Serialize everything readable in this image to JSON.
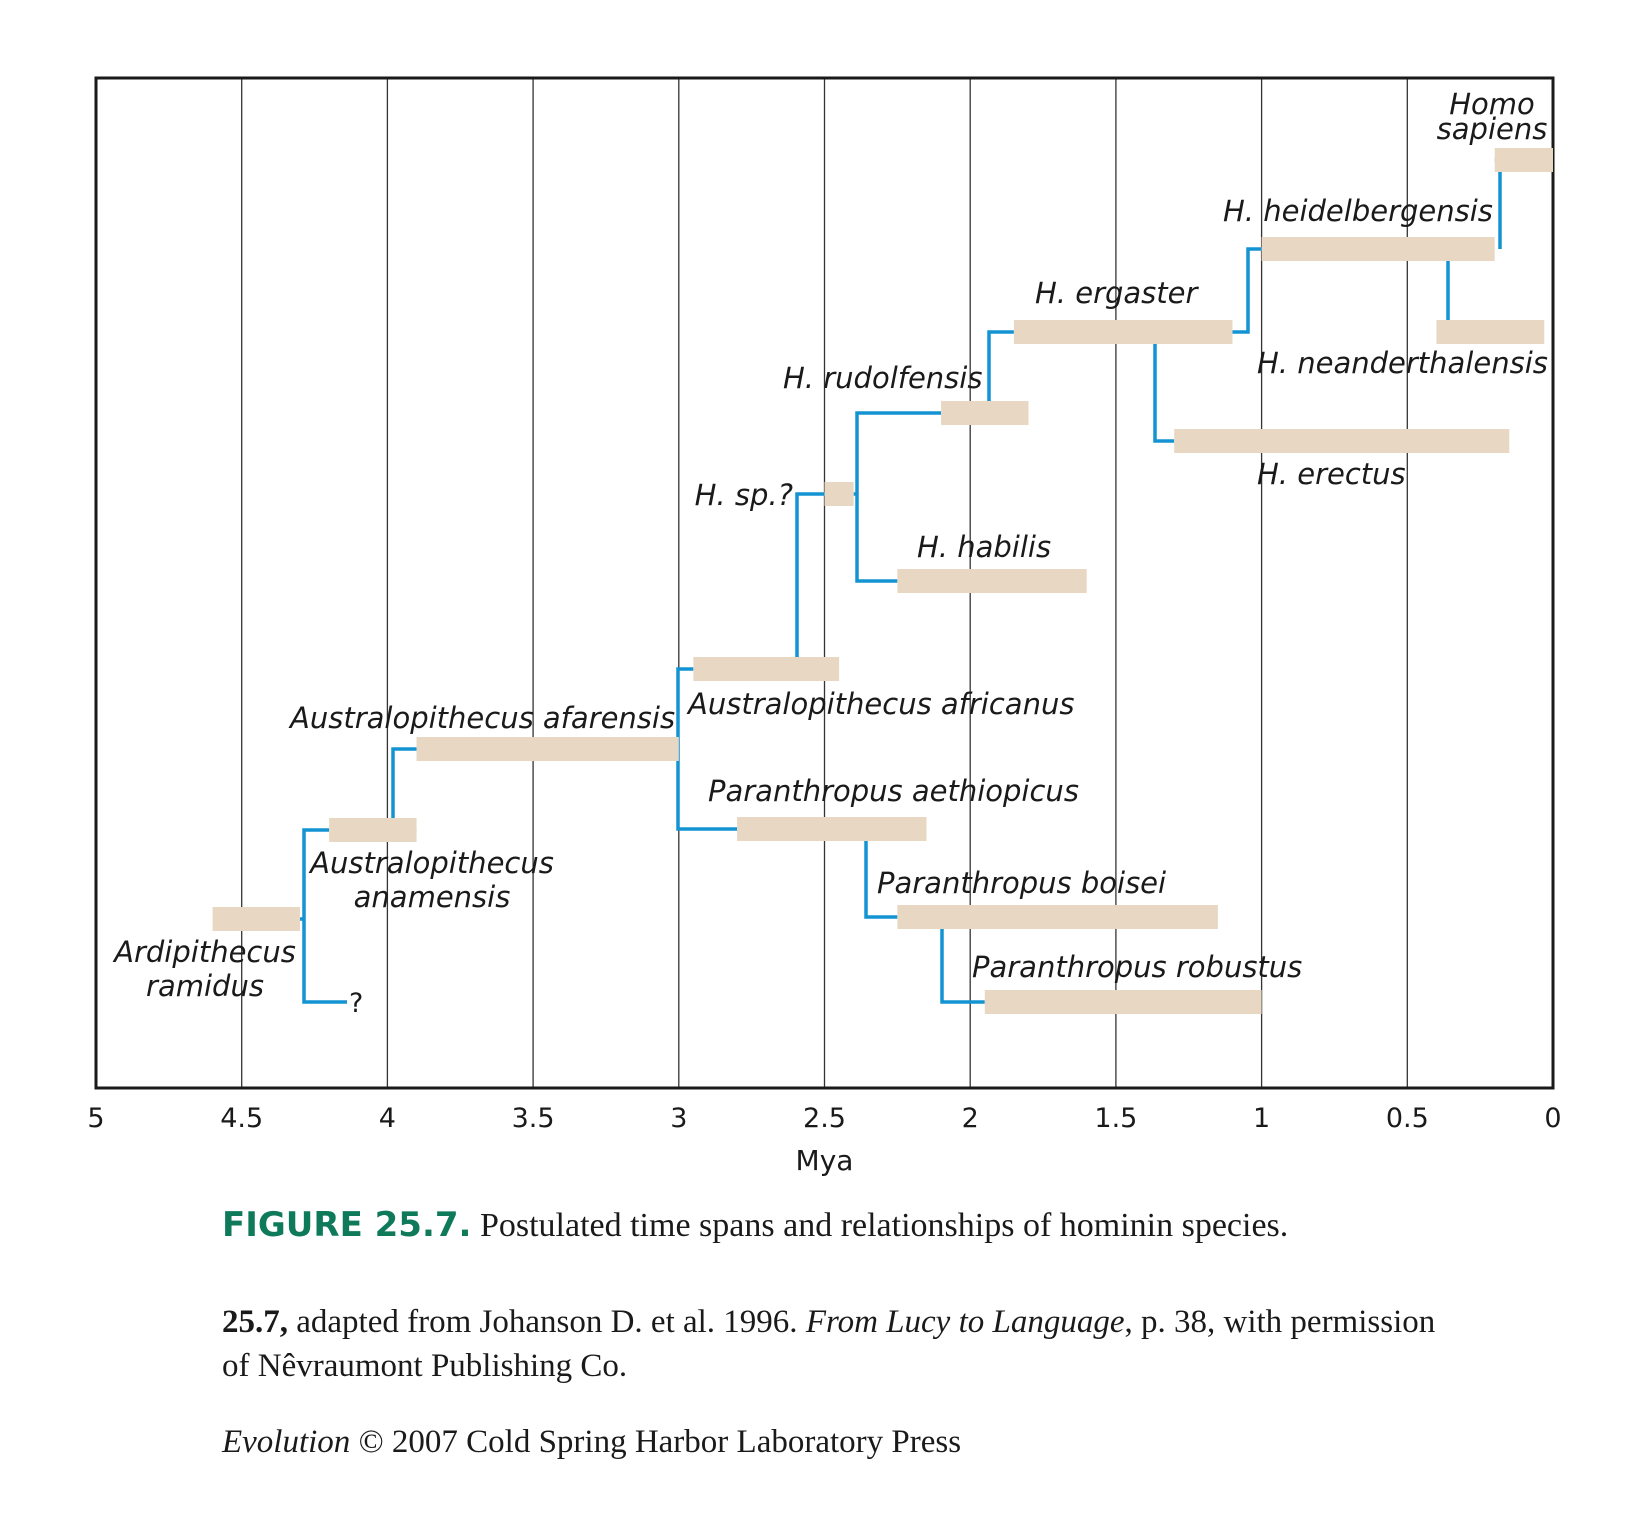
{
  "chart_data": {
    "type": "timeline",
    "xlabel": "Mya",
    "xlim": [
      5,
      0
    ],
    "xticks": [
      "5",
      "4.5",
      "4",
      "3.5",
      "3",
      "2.5",
      "2",
      "1.5",
      "1",
      "0.5",
      "0"
    ],
    "bar_color": "#e8d8c3",
    "line_color": "#1493d3",
    "species": [
      {
        "id": "ramidus",
        "label": [
          "Ardipithecus",
          "ramidus"
        ],
        "start": 4.6,
        "end": 4.3
      },
      {
        "id": "anamensis",
        "label": [
          "Australopithecus",
          "anamensis"
        ],
        "start": 4.2,
        "end": 3.9
      },
      {
        "id": "afarensis",
        "label": [
          "Australopithecus afarensis"
        ],
        "start": 3.9,
        "end": 3.0
      },
      {
        "id": "africanus",
        "label": [
          "Australopithecus africanus"
        ],
        "start": 2.95,
        "end": 2.45
      },
      {
        "id": "aethiopicus",
        "label": [
          "Paranthropus aethiopicus"
        ],
        "start": 2.8,
        "end": 2.15
      },
      {
        "id": "boisei",
        "label": [
          "Paranthropus boisei"
        ],
        "start": 2.25,
        "end": 1.15
      },
      {
        "id": "robustus",
        "label": [
          "Paranthropus robustus"
        ],
        "start": 1.95,
        "end": 1.0
      },
      {
        "id": "hsp",
        "label": [
          "H. sp.?"
        ],
        "start": 2.5,
        "end": 2.4
      },
      {
        "id": "habilis",
        "label": [
          "H. habilis"
        ],
        "start": 2.25,
        "end": 1.6
      },
      {
        "id": "rudolfensis",
        "label": [
          "H. rudolfensis"
        ],
        "start": 2.1,
        "end": 1.8
      },
      {
        "id": "ergaster",
        "label": [
          "H. ergaster"
        ],
        "start": 1.85,
        "end": 1.1
      },
      {
        "id": "erectus",
        "label": [
          "H. erectus"
        ],
        "start": 1.3,
        "end": 0.15
      },
      {
        "id": "heidelbergensis",
        "label": [
          "H. heidelbergensis"
        ],
        "start": 1.0,
        "end": 0.2
      },
      {
        "id": "neanderthalensis",
        "label": [
          "H. neanderthalensis"
        ],
        "start": 0.4,
        "end": 0.03
      },
      {
        "id": "sapiens",
        "label": [
          "Homo",
          "sapiens"
        ],
        "start": 0.2,
        "end": 0.0
      }
    ],
    "relationships": [
      {
        "from": "ramidus",
        "to": "anamensis"
      },
      {
        "from": "ramidus",
        "to": "?"
      },
      {
        "from": "anamensis",
        "to": "afarensis"
      },
      {
        "from": "afarensis",
        "to": "africanus"
      },
      {
        "from": "afarensis",
        "to": "aethiopicus"
      },
      {
        "from": "aethiopicus",
        "to": "boisei"
      },
      {
        "from": "boisei",
        "to": "robustus"
      },
      {
        "from": "africanus",
        "to": "hsp"
      },
      {
        "from": "hsp",
        "to": "rudolfensis"
      },
      {
        "from": "hsp",
        "to": "habilis"
      },
      {
        "from": "rudolfensis",
        "to": "ergaster"
      },
      {
        "from": "ergaster",
        "to": "heidelbergensis"
      },
      {
        "from": "ergaster",
        "to": "erectus"
      },
      {
        "from": "heidelbergensis",
        "to": "sapiens"
      },
      {
        "from": "heidelbergensis",
        "to": "neanderthalensis"
      }
    ],
    "unknown_mark": "?"
  },
  "caption": {
    "figure_label": "FIGURE 25.7.",
    "figure_text": "Postulated time spans and relationships of hominin species.",
    "credit_ref": "25.7,",
    "credit_pre": "adapted from Johanson D. et al. 1996.",
    "credit_title": "From Lucy to Language",
    "credit_post": ", p. 38, with permission of Nêvraumont Publishing Co.",
    "book_title": "Evolution",
    "copyright": "© 2007 Cold Spring Harbor Laboratory Press"
  }
}
